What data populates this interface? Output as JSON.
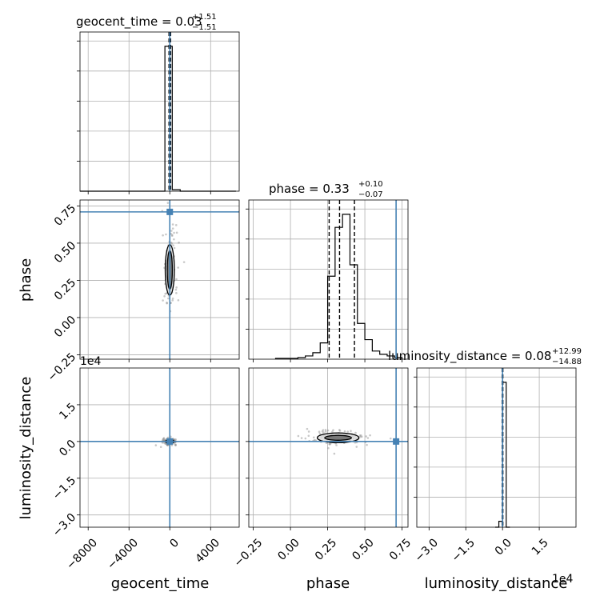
{
  "chart_data": {
    "type": "corner",
    "parameters": [
      "geocent_time",
      "phase",
      "luminosity_distance"
    ],
    "axis_labels": {
      "geocent_time": "geocent_time",
      "phase": "phase",
      "luminosity_distance": "luminosity_distance"
    },
    "ranges": {
      "geocent_time": [
        -8800,
        6800
      ],
      "phase": [
        -0.28,
        0.79
      ],
      "luminosity_distance": [
        -35000,
        30000
      ]
    },
    "ticks": {
      "geocent_time": {
        "values": [
          -8000,
          -4000,
          0,
          4000
        ],
        "labels": [
          "−8000",
          "−4000",
          "0",
          "4000"
        ]
      },
      "phase": {
        "values": [
          -0.25,
          0.0,
          0.25,
          0.5,
          0.75
        ],
        "labels": [
          "−0.25",
          "0.00",
          "0.25",
          "0.50",
          "0.75"
        ]
      },
      "luminosity_distance": {
        "values": [
          -30000,
          -15000,
          0,
          15000
        ],
        "labels": [
          "−3.0",
          "−1.5",
          "0.0",
          "1.5"
        ]
      }
    },
    "offset_text": {
      "luminosity_distance": "1e4"
    },
    "titles": {
      "geocent_time": {
        "main": "geocent_time = 0.03",
        "plus": "+1.51",
        "minus": "−1.51"
      },
      "phase": {
        "main": "phase = 0.33",
        "plus": "+0.10",
        "minus": "−0.07"
      },
      "luminosity_distance": {
        "main": "luminosity_distance = 0.08",
        "plus": "+12.99",
        "minus": "−14.88"
      }
    },
    "truths": {
      "geocent_time": 0,
      "phase": 0.71,
      "luminosity_distance": 0
    },
    "quantiles": {
      "geocent_time": [
        -80,
        0,
        80
      ],
      "phase": [
        0.26,
        0.33,
        0.43
      ],
      "luminosity_distance": [
        -150,
        0,
        150
      ]
    },
    "histograms": {
      "geocent_time": {
        "bin_edges": [
          -8800,
          -8020,
          -7240,
          -6460,
          -5680,
          -4900,
          -4120,
          -3340,
          -2560,
          -1780,
          -1000,
          -480,
          240,
          1020,
          1800,
          2580,
          3360,
          4140,
          4920,
          5700,
          6480
        ],
        "counts": [
          0,
          0,
          0,
          0,
          0,
          0,
          0,
          0,
          0,
          0,
          0,
          98,
          1,
          0,
          0,
          0,
          0,
          0,
          0,
          0
        ]
      },
      "phase": {
        "bin_edges": [
          -0.1,
          -0.05,
          0.0,
          0.05,
          0.1,
          0.15,
          0.2,
          0.25,
          0.3,
          0.35,
          0.4,
          0.45,
          0.5,
          0.55,
          0.6,
          0.65,
          0.7,
          0.75
        ],
        "counts": [
          0.5,
          0.5,
          0.5,
          1,
          2,
          4,
          10,
          51,
          81,
          89,
          58,
          22,
          12,
          5,
          3,
          2,
          1
        ]
      },
      "luminosity_distance": {
        "bin_edges": [
          -3000,
          -1500,
          0,
          1500,
          3000
        ],
        "counts": [
          0,
          4,
          98,
          0
        ]
      }
    },
    "joint": [
      {
        "x": "geocent_time",
        "y": "phase",
        "center": [
          0,
          0.32
        ],
        "contour_half_widths": [
          [
            250,
            0.13
          ],
          [
            450,
            0.17
          ]
        ]
      },
      {
        "x": "geocent_time",
        "y": "luminosity_distance",
        "center": [
          0,
          0
        ],
        "contour_half_widths": [
          [
            200,
            500
          ],
          [
            400,
            800
          ]
        ]
      },
      {
        "x": "phase",
        "y": "luminosity_distance",
        "center": [
          0.32,
          1500
        ],
        "contour_half_widths": [
          [
            0.09,
            1000
          ],
          [
            0.14,
            2000
          ]
        ]
      }
    ]
  }
}
